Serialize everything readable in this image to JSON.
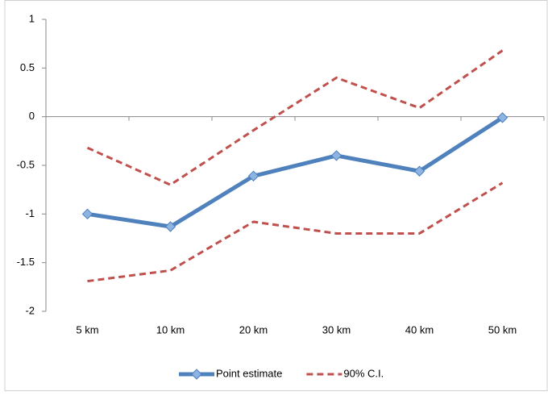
{
  "chart_data": {
    "type": "line",
    "categories": [
      "5 km",
      "10 km",
      "20 km",
      "30 km",
      "40 km",
      "50 km"
    ],
    "series": [
      {
        "name": "Point estimate",
        "color": "#4f81bd",
        "values": [
          -1.0,
          -1.13,
          -0.61,
          -0.4,
          -0.56,
          -0.01
        ]
      },
      {
        "name": "90% C.I.",
        "color": "#c0504d",
        "dashed": true,
        "values": [
          -0.32,
          -0.7,
          -0.14,
          0.4,
          0.09,
          0.68
        ]
      },
      {
        "color": "#c0504d",
        "dashed": true,
        "values": [
          -1.69,
          -1.58,
          -1.08,
          -1.2,
          -1.2,
          -0.68
        ]
      }
    ],
    "ylim": [
      -2,
      1
    ],
    "yticks": [
      1,
      0.5,
      0,
      -0.5,
      -1,
      -1.5,
      -2
    ],
    "grid": false,
    "legend": "bottom"
  }
}
